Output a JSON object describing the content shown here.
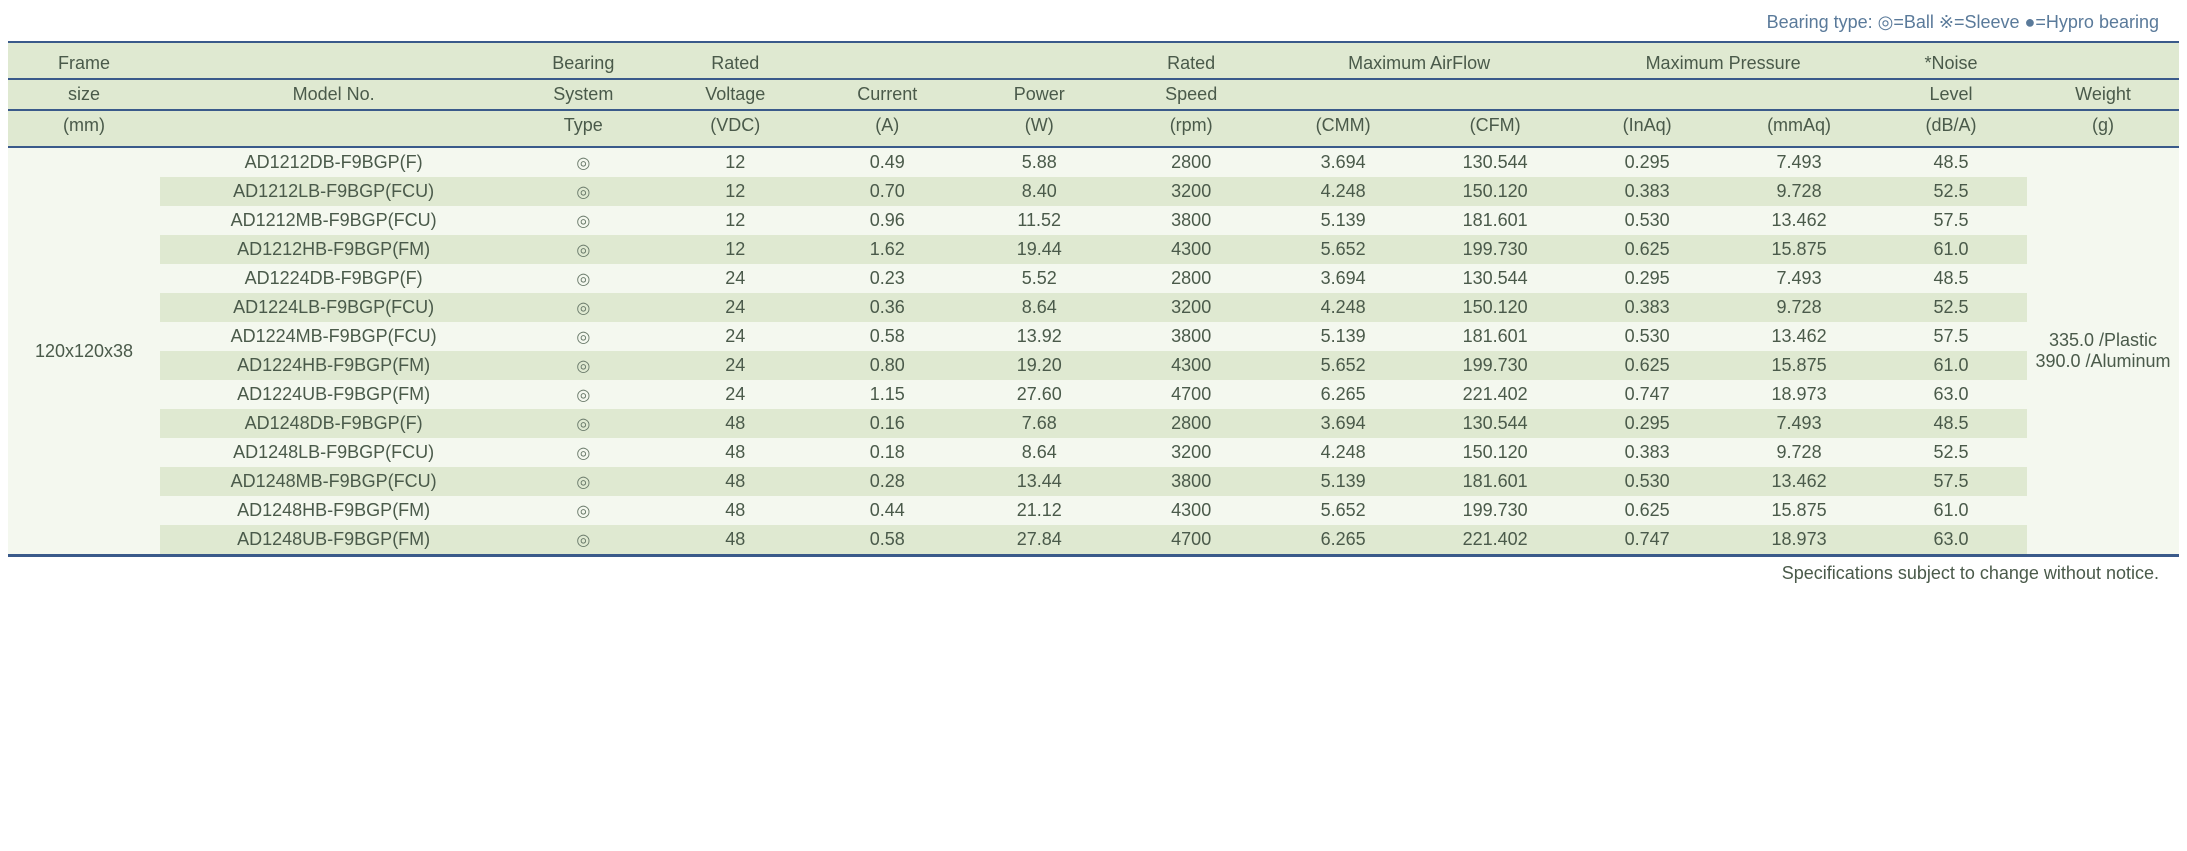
{
  "legend": "Bearing type:  ◎=Ball ※=Sleeve ●=Hypro bearing",
  "footer": "Specifications subject to change without notice.",
  "colors": {
    "header_bg": "#dfe9d1",
    "row_even_bg": "#dfe9d1",
    "row_odd_bg": "#f4f8ef",
    "rule": "#3a5a8a",
    "text": "#4a5a4a",
    "legend_text": "#5a7a9a"
  },
  "typography": {
    "body_fontsize_pt": 13,
    "font_family": "Arial"
  },
  "headers": {
    "frame": [
      "Frame",
      "size",
      "(mm)"
    ],
    "model": [
      "",
      "Model No.",
      ""
    ],
    "bearing": [
      "Bearing",
      "System",
      "Type"
    ],
    "voltage": [
      "Rated",
      "Voltage",
      "(VDC)"
    ],
    "current": [
      "",
      "Current",
      "(A)"
    ],
    "power": [
      "",
      "Power",
      "(W)"
    ],
    "speed": [
      "Rated",
      "Speed",
      "(rpm)"
    ],
    "airflow_group": "Maximum AirFlow",
    "cmm": "(CMM)",
    "cfm": "(CFM)",
    "pressure_group": "Maximum Pressure",
    "inaq": "(InAq)",
    "mmaq": "(mmAq)",
    "noise": [
      "*Noise",
      "Level",
      "(dB/A)"
    ],
    "weight": [
      "",
      "Weight",
      "(g)"
    ]
  },
  "frame_size": "120x120x38",
  "weight_text": "335.0 /Plastic 390.0 /Aluminum",
  "bearing_icon": "◎",
  "rows": [
    {
      "model": "AD1212DB-F9BGP(F)",
      "volt": "12",
      "curr": "0.49",
      "power": "5.88",
      "speed": "2800",
      "cmm": "3.694",
      "cfm": "130.544",
      "inaq": "0.295",
      "mmaq": "7.493",
      "noise": "48.5"
    },
    {
      "model": "AD1212LB-F9BGP(FCU)",
      "volt": "12",
      "curr": "0.70",
      "power": "8.40",
      "speed": "3200",
      "cmm": "4.248",
      "cfm": "150.120",
      "inaq": "0.383",
      "mmaq": "9.728",
      "noise": "52.5"
    },
    {
      "model": "AD1212MB-F9BGP(FCU)",
      "volt": "12",
      "curr": "0.96",
      "power": "11.52",
      "speed": "3800",
      "cmm": "5.139",
      "cfm": "181.601",
      "inaq": "0.530",
      "mmaq": "13.462",
      "noise": "57.5"
    },
    {
      "model": "AD1212HB-F9BGP(FM)",
      "volt": "12",
      "curr": "1.62",
      "power": "19.44",
      "speed": "4300",
      "cmm": "5.652",
      "cfm": "199.730",
      "inaq": "0.625",
      "mmaq": "15.875",
      "noise": "61.0"
    },
    {
      "model": "AD1224DB-F9BGP(F)",
      "volt": "24",
      "curr": "0.23",
      "power": "5.52",
      "speed": "2800",
      "cmm": "3.694",
      "cfm": "130.544",
      "inaq": "0.295",
      "mmaq": "7.493",
      "noise": "48.5"
    },
    {
      "model": "AD1224LB-F9BGP(FCU)",
      "volt": "24",
      "curr": "0.36",
      "power": "8.64",
      "speed": "3200",
      "cmm": "4.248",
      "cfm": "150.120",
      "inaq": "0.383",
      "mmaq": "9.728",
      "noise": "52.5"
    },
    {
      "model": "AD1224MB-F9BGP(FCU)",
      "volt": "24",
      "curr": "0.58",
      "power": "13.92",
      "speed": "3800",
      "cmm": "5.139",
      "cfm": "181.601",
      "inaq": "0.530",
      "mmaq": "13.462",
      "noise": "57.5"
    },
    {
      "model": "AD1224HB-F9BGP(FM)",
      "volt": "24",
      "curr": "0.80",
      "power": "19.20",
      "speed": "4300",
      "cmm": "5.652",
      "cfm": "199.730",
      "inaq": "0.625",
      "mmaq": "15.875",
      "noise": "61.0"
    },
    {
      "model": "AD1224UB-F9BGP(FM)",
      "volt": "24",
      "curr": "1.15",
      "power": "27.60",
      "speed": "4700",
      "cmm": "6.265",
      "cfm": "221.402",
      "inaq": "0.747",
      "mmaq": "18.973",
      "noise": "63.0"
    },
    {
      "model": "AD1248DB-F9BGP(F)",
      "volt": "48",
      "curr": "0.16",
      "power": "7.68",
      "speed": "2800",
      "cmm": "3.694",
      "cfm": "130.544",
      "inaq": "0.295",
      "mmaq": "7.493",
      "noise": "48.5"
    },
    {
      "model": "AD1248LB-F9BGP(FCU)",
      "volt": "48",
      "curr": "0.18",
      "power": "8.64",
      "speed": "3200",
      "cmm": "4.248",
      "cfm": "150.120",
      "inaq": "0.383",
      "mmaq": "9.728",
      "noise": "52.5"
    },
    {
      "model": "AD1248MB-F9BGP(FCU)",
      "volt": "48",
      "curr": "0.28",
      "power": "13.44",
      "speed": "3800",
      "cmm": "5.139",
      "cfm": "181.601",
      "inaq": "0.530",
      "mmaq": "13.462",
      "noise": "57.5"
    },
    {
      "model": "AD1248HB-F9BGP(FM)",
      "volt": "48",
      "curr": "0.44",
      "power": "21.12",
      "speed": "4300",
      "cmm": "5.652",
      "cfm": "199.730",
      "inaq": "0.625",
      "mmaq": "15.875",
      "noise": "61.0"
    },
    {
      "model": "AD1248UB-F9BGP(FM)",
      "volt": "48",
      "curr": "0.58",
      "power": "27.84",
      "speed": "4700",
      "cmm": "6.265",
      "cfm": "221.402",
      "inaq": "0.747",
      "mmaq": "18.973",
      "noise": "63.0"
    }
  ]
}
